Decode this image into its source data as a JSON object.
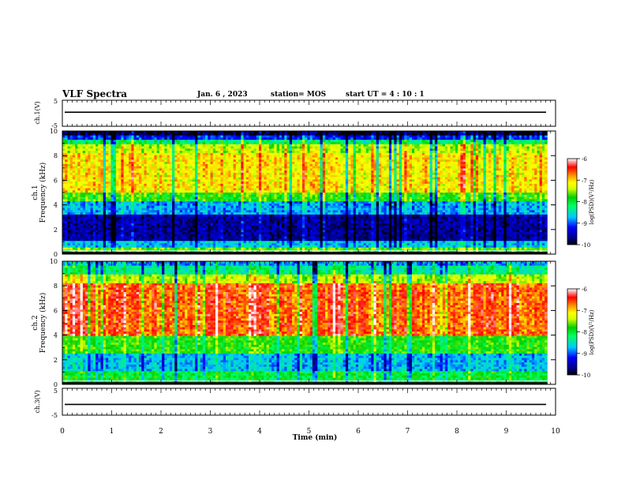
{
  "header": {
    "title": "VLF Spectra",
    "date": "Jan. 6 , 2023",
    "station": "station= MOS",
    "start_ut": "start UT = 4 : 10 : 1"
  },
  "chart_data": [
    {
      "type": "line",
      "panel": "ch1-waveform",
      "ylabel": "ch.1(V)",
      "ylim": [
        -5,
        5
      ],
      "yticks": [
        "5",
        "-5"
      ],
      "xlim": [
        0,
        10
      ],
      "x": [
        0,
        10
      ],
      "y": [
        0.4,
        0.4
      ],
      "colors": {
        "trace": "#000000"
      }
    },
    {
      "type": "heatmap",
      "panel": "ch1-spectrogram",
      "ylabel_channel": "ch.1",
      "ylabel": "Frequency (kHz)",
      "ylim": [
        0,
        10
      ],
      "yticks": [
        "0",
        "2",
        "4",
        "6",
        "8",
        "10"
      ],
      "xlim": [
        0,
        9.83
      ],
      "colorbar": {
        "label": "log(PSD)(V²/Hz)",
        "range": [
          -10,
          -6
        ],
        "ticks": [
          "-6",
          "-7",
          "-8",
          "-9",
          "-10"
        ]
      },
      "bands": [
        {
          "f_from": 0.0,
          "f_to": 0.15,
          "level": -10.0
        },
        {
          "f_from": 0.15,
          "f_to": 0.5,
          "level": -7.6
        },
        {
          "f_from": 0.5,
          "f_to": 1.0,
          "level": -8.7
        },
        {
          "f_from": 1.0,
          "f_to": 3.3,
          "level": -9.6
        },
        {
          "f_from": 3.3,
          "f_to": 4.2,
          "level": -8.8
        },
        {
          "f_from": 4.2,
          "f_to": 5.0,
          "level": -7.8
        },
        {
          "f_from": 5.0,
          "f_to": 8.3,
          "level": -7.1
        },
        {
          "f_from": 8.3,
          "f_to": 8.9,
          "level": -7.4
        },
        {
          "f_from": 8.9,
          "f_to": 9.3,
          "level": -8.2
        },
        {
          "f_from": 9.3,
          "f_to": 9.6,
          "level": -9.2
        },
        {
          "f_from": 9.6,
          "f_to": 10.0,
          "level": -9.9
        }
      ]
    },
    {
      "type": "heatmap",
      "panel": "ch2-spectrogram",
      "ylabel_channel": "ch.2",
      "ylabel": "Frequency (kHz)",
      "ylim": [
        0,
        10
      ],
      "yticks": [
        "0",
        "2",
        "4",
        "6",
        "8",
        "10"
      ],
      "xlim": [
        0,
        9.83
      ],
      "colorbar": {
        "label": "log(PSD)(V²/Hz)",
        "range": [
          -10,
          -6
        ],
        "ticks": [
          "-6",
          "-7",
          "-8",
          "-9",
          "-10"
        ]
      },
      "bands": [
        {
          "f_from": 0.0,
          "f_to": 0.1,
          "level": -10.0
        },
        {
          "f_from": 0.1,
          "f_to": 1.0,
          "level": -8.0
        },
        {
          "f_from": 1.0,
          "f_to": 2.5,
          "level": -8.7
        },
        {
          "f_from": 2.5,
          "f_to": 4.0,
          "level": -7.8
        },
        {
          "f_from": 4.0,
          "f_to": 8.2,
          "level": -6.6
        },
        {
          "f_from": 8.2,
          "f_to": 9.0,
          "level": -7.4
        },
        {
          "f_from": 9.0,
          "f_to": 9.6,
          "level": -8.3
        },
        {
          "f_from": 9.6,
          "f_to": 10.0,
          "level": -8.8
        }
      ]
    },
    {
      "type": "line",
      "panel": "ch3-waveform",
      "ylabel": "ch.3(V)",
      "ylim": [
        -5,
        5
      ],
      "yticks": [
        "5",
        "-5"
      ],
      "xlim": [
        0,
        10
      ],
      "x": [
        0,
        10
      ],
      "y": [
        -1.0,
        -1.0
      ],
      "xlabel": "Time (min)",
      "xticks": [
        "0",
        "1",
        "2",
        "3",
        "4",
        "5",
        "6",
        "7",
        "8",
        "9",
        "10"
      ],
      "colors": {
        "trace": "#000000"
      }
    }
  ]
}
